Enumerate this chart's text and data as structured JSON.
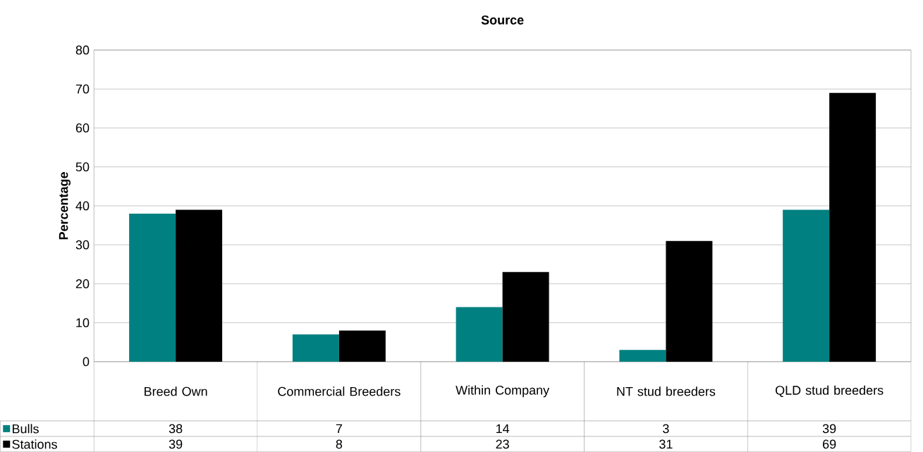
{
  "chart_data": {
    "type": "bar",
    "title": "Source",
    "ylabel": "Percentage",
    "categories": [
      "Breed Own",
      "Commercial Breeders",
      "Within Company",
      "NT stud breeders",
      "QLD stud breeders"
    ],
    "series": [
      {
        "name": "Bulls",
        "color": "#008080",
        "values": [
          38,
          7,
          14,
          3,
          39
        ]
      },
      {
        "name": "Stations",
        "color": "#000000",
        "values": [
          39,
          8,
          23,
          31,
          69
        ]
      }
    ],
    "ylim": [
      0,
      80
    ],
    "yticks": [
      0,
      10,
      20,
      30,
      40,
      50,
      60,
      70,
      80
    ],
    "grid": "y",
    "legend": "bottom",
    "data_labels": true
  }
}
